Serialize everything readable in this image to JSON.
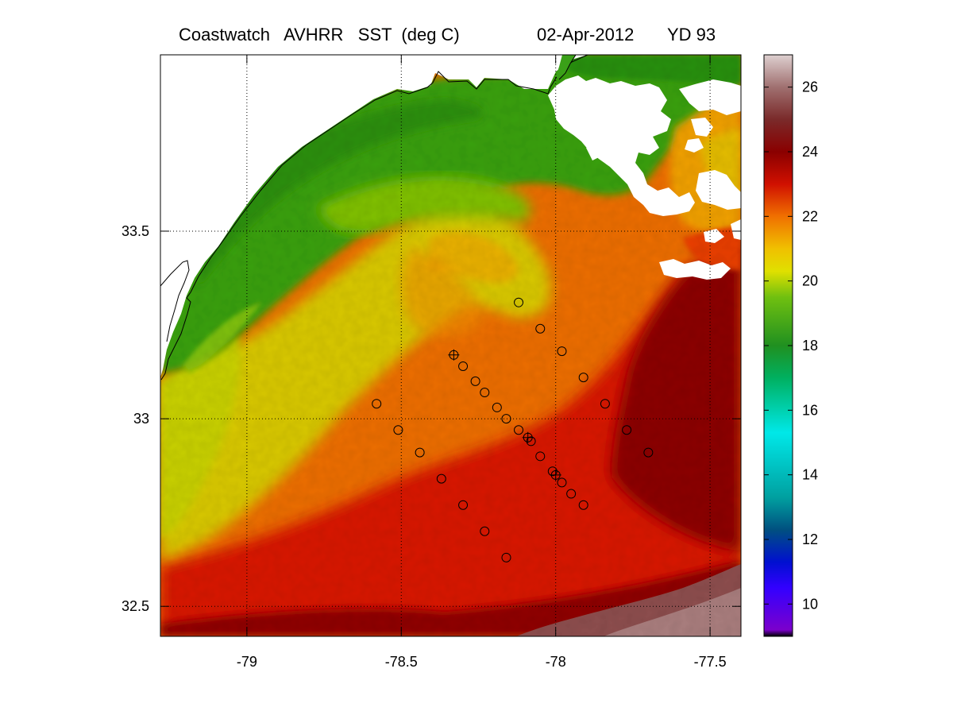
{
  "figure": {
    "title_left": "Coastwatch   AVHRR   SST  (deg C)",
    "title_date": "02-Apr-2012",
    "title_yd": "YD 93"
  },
  "map_data": {
    "type": "heatmap",
    "variable": "SST",
    "units": "deg C",
    "xlim": [
      -79.28,
      -77.4
    ],
    "ylim": [
      32.42,
      33.97
    ],
    "x_ticks": [
      -79,
      -78.5,
      -78,
      -77.5
    ],
    "x_tick_labels": [
      "-79",
      "-78.5",
      "-78",
      "-77.5"
    ],
    "y_ticks": [
      32.5,
      33,
      33.5
    ],
    "y_tick_labels": [
      "32.5",
      "33",
      "33.5"
    ],
    "grid": "dotted at ticks",
    "colorbar": {
      "range": [
        9,
        27
      ],
      "ticks": [
        10,
        12,
        14,
        16,
        18,
        20,
        22,
        24,
        26
      ],
      "tick_labels": [
        "10",
        "12",
        "14",
        "16",
        "18",
        "20",
        "22",
        "24",
        "26"
      ]
    },
    "colormap": {
      "stops": [
        {
          "v": 9.0,
          "color": "#000000"
        },
        {
          "v": 9.2,
          "color": "#7b00cc"
        },
        {
          "v": 10.5,
          "color": "#3300ff"
        },
        {
          "v": 11.3,
          "color": "#0010d0"
        },
        {
          "v": 12.3,
          "color": "#005080"
        },
        {
          "v": 13.3,
          "color": "#00a0a0"
        },
        {
          "v": 15.3,
          "color": "#00e8e8"
        },
        {
          "v": 17.0,
          "color": "#00b060"
        },
        {
          "v": 18.0,
          "color": "#209020"
        },
        {
          "v": 19.5,
          "color": "#70c010"
        },
        {
          "v": 20.3,
          "color": "#e0e000"
        },
        {
          "v": 21.0,
          "color": "#f0c000"
        },
        {
          "v": 22.0,
          "color": "#f07000"
        },
        {
          "v": 23.0,
          "color": "#d01000"
        },
        {
          "v": 24.0,
          "color": "#8a0000"
        },
        {
          "v": 25.0,
          "color": "#7a2a2a"
        },
        {
          "v": 26.0,
          "color": "#a07070"
        },
        {
          "v": 27.0,
          "color": "#ded0d0"
        }
      ]
    },
    "colors": {
      "cloud_mask": "#ffffff",
      "land": "#ffffff",
      "coastline": "#000000",
      "marker": "#000000"
    },
    "stations": {
      "line_a": [
        {
          "lon": -78.33,
          "lat": 33.17,
          "plus": true
        },
        {
          "lon": -78.3,
          "lat": 33.14
        },
        {
          "lon": -78.26,
          "lat": 33.1
        },
        {
          "lon": -78.23,
          "lat": 33.07
        },
        {
          "lon": -78.19,
          "lat": 33.03
        },
        {
          "lon": -78.16,
          "lat": 33.0
        },
        {
          "lon": -78.12,
          "lat": 32.97
        },
        {
          "lon": -78.09,
          "lat": 32.95,
          "plus": true
        },
        {
          "lon": -78.08,
          "lat": 32.94
        },
        {
          "lon": -78.05,
          "lat": 32.9
        },
        {
          "lon": -78.01,
          "lat": 32.86
        },
        {
          "lon": -78.0,
          "lat": 32.85,
          "plus": true
        },
        {
          "lon": -77.98,
          "lat": 32.83
        },
        {
          "lon": -77.95,
          "lat": 32.8
        },
        {
          "lon": -77.91,
          "lat": 32.77
        }
      ],
      "line_b": [
        {
          "lon": -78.12,
          "lat": 33.31
        },
        {
          "lon": -78.05,
          "lat": 33.24
        },
        {
          "lon": -77.98,
          "lat": 33.18
        },
        {
          "lon": -77.91,
          "lat": 33.11
        },
        {
          "lon": -77.84,
          "lat": 33.04
        },
        {
          "lon": -77.77,
          "lat": 32.97
        },
        {
          "lon": -77.7,
          "lat": 32.91
        }
      ],
      "line_c": [
        {
          "lon": -78.58,
          "lat": 33.04
        },
        {
          "lon": -78.51,
          "lat": 32.97
        },
        {
          "lon": -78.44,
          "lat": 32.91
        },
        {
          "lon": -78.37,
          "lat": 32.84
        },
        {
          "lon": -78.3,
          "lat": 32.77
        },
        {
          "lon": -78.23,
          "lat": 32.7
        },
        {
          "lon": -78.16,
          "lat": 32.63
        }
      ]
    }
  }
}
